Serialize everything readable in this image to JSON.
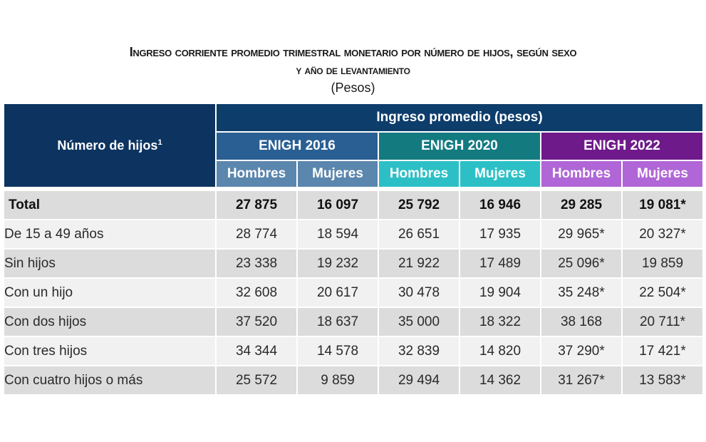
{
  "title": {
    "line1": "Ingreso corriente promedio trimestral monetario por número de hijos, según sexo",
    "line2": "y año de levantamiento",
    "units": "(Pesos)"
  },
  "table": {
    "corner_label": "Número de hijos",
    "corner_footnote": "1",
    "group_header": "Ingreso promedio (pesos)",
    "years": [
      {
        "label": "ENIGH 2016",
        "color": "#2a5f93",
        "sub_color": "#5b86ad"
      },
      {
        "label": "ENIGH 2020",
        "color": "#137a80",
        "sub_color": "#2cc0c6"
      },
      {
        "label": "ENIGH 2022",
        "color": "#6e1a8a",
        "sub_color": "#b066d6"
      }
    ],
    "sex_headers": [
      "Hombres",
      "Mujeres",
      "Hombres",
      "Mujeres",
      "Hombres",
      "Mujeres"
    ],
    "rows": [
      {
        "label": "Total",
        "values": [
          "27 875",
          "16 097",
          "25 792",
          "16 946",
          "29 285",
          "19 081*"
        ]
      },
      {
        "label": "De 15 a 49 años",
        "values": [
          "28 774",
          "18 594",
          "26 651",
          "17 935",
          "29 965*",
          "20 327*"
        ]
      },
      {
        "label": "Sin hijos",
        "values": [
          "23 338",
          "19 232",
          "21 922",
          "17 489",
          "25 096*",
          "19 859"
        ]
      },
      {
        "label": "Con un hijo",
        "values": [
          "32 608",
          "20 617",
          "30 478",
          "19 904",
          "35 248*",
          "22 504*"
        ]
      },
      {
        "label": "Con dos hijos",
        "values": [
          "37 520",
          "18 637",
          "35 000",
          "18 322",
          "38 168",
          "20 711*"
        ]
      },
      {
        "label": "Con tres hijos",
        "values": [
          "34 344",
          "14 578",
          "32 839",
          "14 820",
          "37 290*",
          "17 421*"
        ]
      },
      {
        "label": "Con cuatro hijos o más",
        "values": [
          "25 572",
          "9 859",
          "29 494",
          "14 362",
          "31 267*",
          "13 583*"
        ]
      }
    ]
  }
}
